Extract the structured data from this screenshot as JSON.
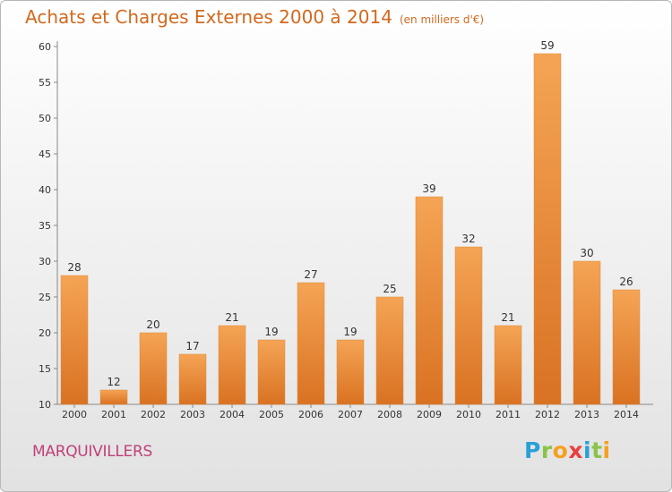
{
  "header": {
    "title": "Achats et Charges Externes 2000 à 2014",
    "unit": "(en milliers d'€)"
  },
  "footer": {
    "commune": "MARQUIVILLERS",
    "logo": "Proxiti"
  },
  "colors": {
    "bar_top": "#f5a455",
    "bar_bottom": "#d97222",
    "title": "#d2691e",
    "commune": "#c0407a"
  },
  "chart_data": {
    "type": "bar",
    "title": "Achats et Charges Externes 2000 à 2014",
    "subtitle": "(en milliers d'€)",
    "xlabel": "",
    "ylabel": "",
    "categories": [
      "2000",
      "2001",
      "2002",
      "2003",
      "2004",
      "2005",
      "2006",
      "2007",
      "2008",
      "2009",
      "2010",
      "2011",
      "2012",
      "2013",
      "2014"
    ],
    "values": [
      28,
      12,
      20,
      17,
      21,
      19,
      27,
      19,
      25,
      39,
      32,
      21,
      59,
      30,
      26
    ],
    "ylim": [
      10,
      60
    ],
    "yticks": [
      10,
      15,
      20,
      25,
      30,
      35,
      40,
      45,
      50,
      55,
      60
    ],
    "grid": false,
    "legend": "none"
  }
}
